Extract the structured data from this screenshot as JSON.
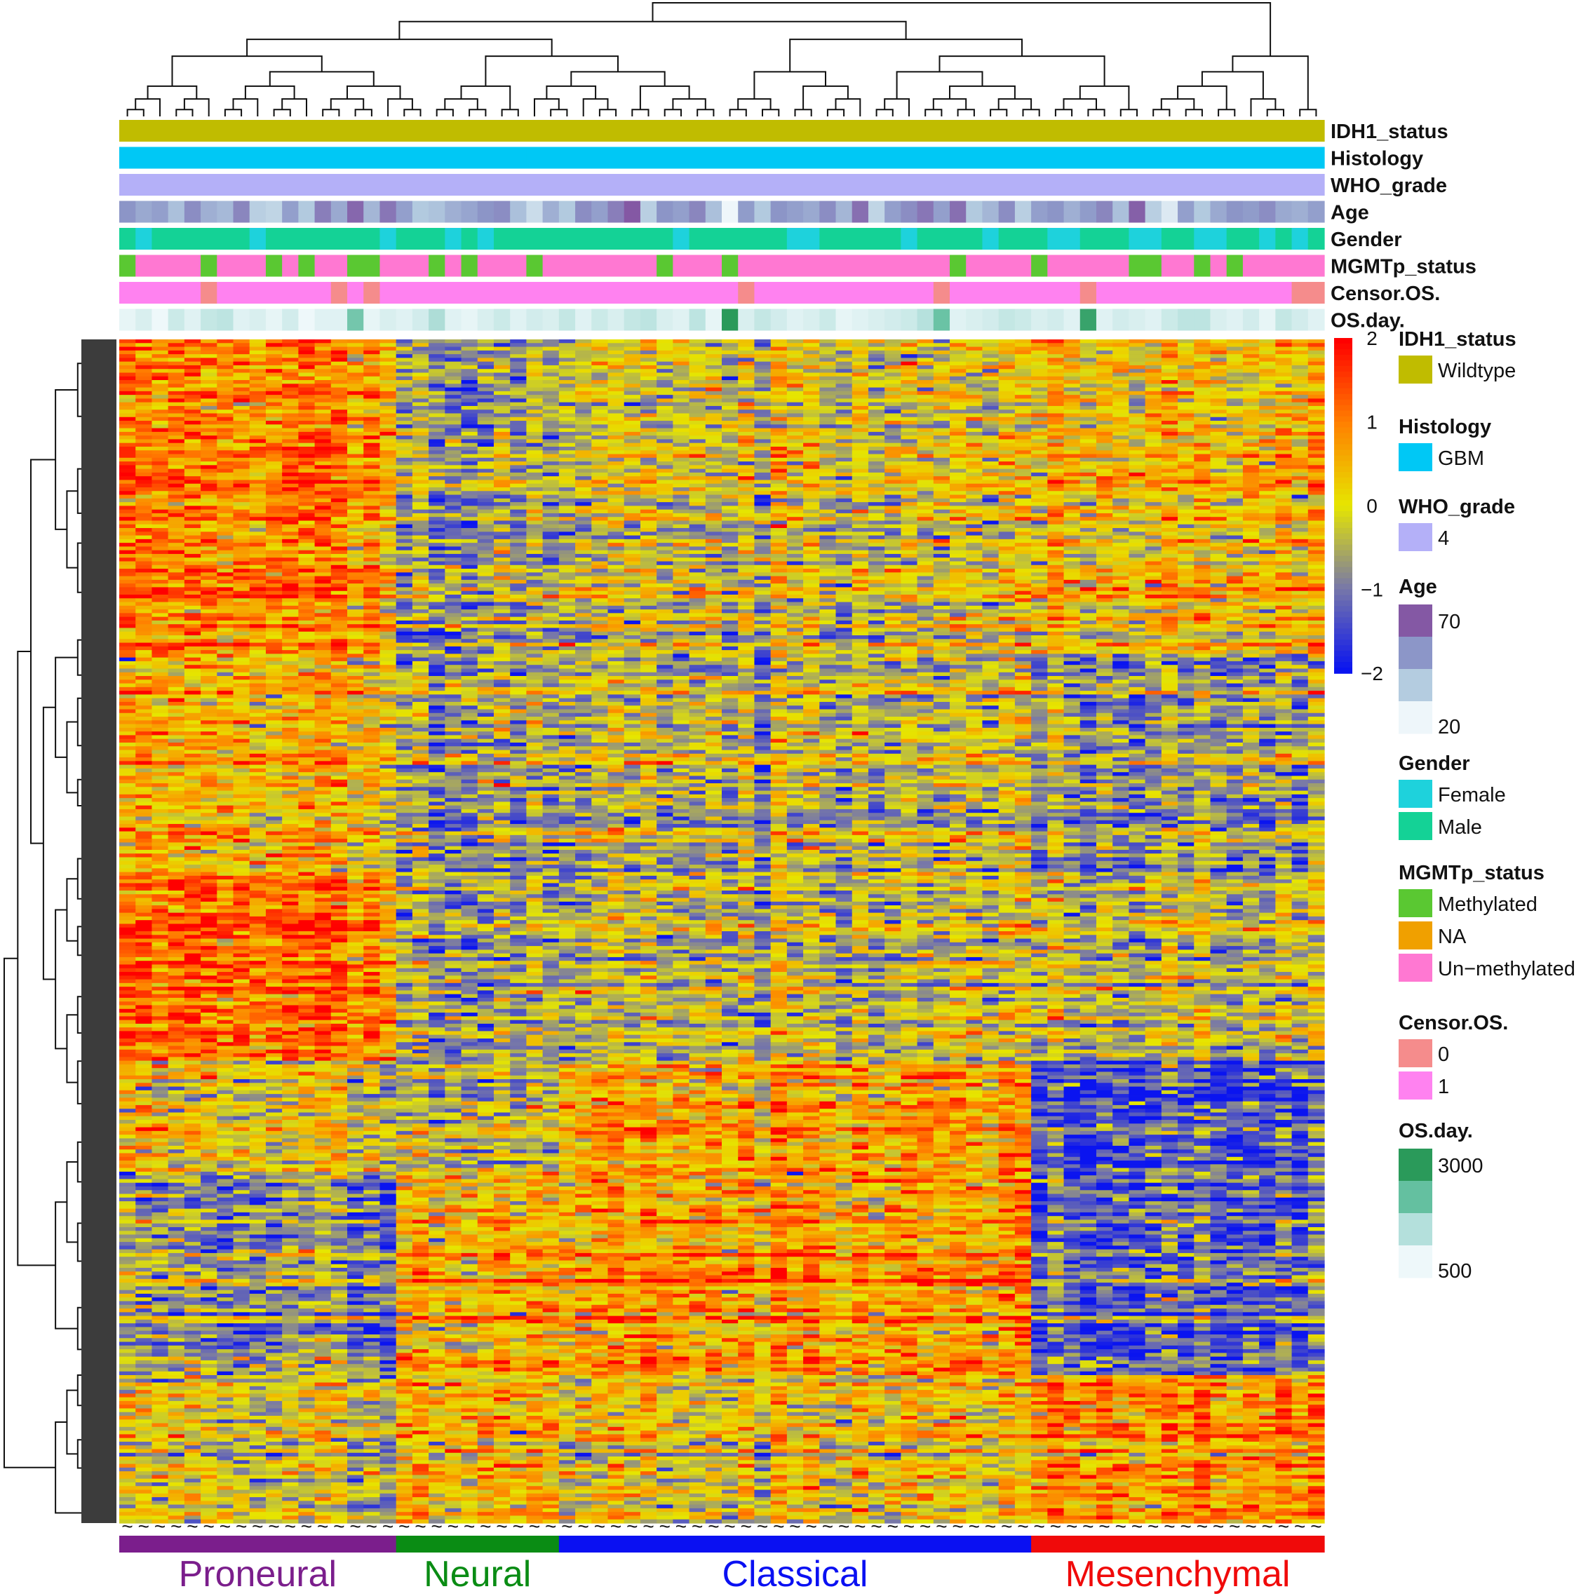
{
  "chart_data": {
    "type": "heatmap",
    "title": "",
    "n_samples": 74,
    "n_genes": 320,
    "color_scale": {
      "min": -2,
      "max": 2,
      "ticks": [
        2,
        1,
        0,
        -1,
        -2
      ],
      "tick_labels": [
        "2",
        "1",
        "0",
        "−1",
        "−2"
      ],
      "colors": [
        "#0a14f0",
        "#7878a8",
        "#e6e600",
        "#ff8000",
        "#ff0000"
      ]
    },
    "column_annotations": [
      {
        "name": "IDH1_status",
        "type": "categorical",
        "levels": [
          {
            "label": "Wildtype",
            "color": "#c0bc00"
          }
        ],
        "values": [
          0,
          0,
          0,
          0,
          0,
          0,
          0,
          0,
          0,
          0,
          0,
          0,
          0,
          0,
          0,
          0,
          0,
          0,
          0,
          0,
          0,
          0,
          0,
          0,
          0,
          0,
          0,
          0,
          0,
          0,
          0,
          0,
          0,
          0,
          0,
          0,
          0,
          0,
          0,
          0,
          0,
          0,
          0,
          0,
          0,
          0,
          0,
          0,
          0,
          0,
          0,
          0,
          0,
          0,
          0,
          0,
          0,
          0,
          0,
          0,
          0,
          0,
          0,
          0,
          0,
          0,
          0,
          0,
          0,
          0,
          0,
          0,
          0,
          0
        ]
      },
      {
        "name": "Histology",
        "type": "categorical",
        "levels": [
          {
            "label": "GBM",
            "color": "#00c8f5"
          }
        ],
        "values": [
          0,
          0,
          0,
          0,
          0,
          0,
          0,
          0,
          0,
          0,
          0,
          0,
          0,
          0,
          0,
          0,
          0,
          0,
          0,
          0,
          0,
          0,
          0,
          0,
          0,
          0,
          0,
          0,
          0,
          0,
          0,
          0,
          0,
          0,
          0,
          0,
          0,
          0,
          0,
          0,
          0,
          0,
          0,
          0,
          0,
          0,
          0,
          0,
          0,
          0,
          0,
          0,
          0,
          0,
          0,
          0,
          0,
          0,
          0,
          0,
          0,
          0,
          0,
          0,
          0,
          0,
          0,
          0,
          0,
          0,
          0,
          0,
          0,
          0
        ]
      },
      {
        "name": "WHO_grade",
        "type": "categorical",
        "levels": [
          {
            "label": "4",
            "color": "#b4b0f8"
          }
        ],
        "values": [
          0,
          0,
          0,
          0,
          0,
          0,
          0,
          0,
          0,
          0,
          0,
          0,
          0,
          0,
          0,
          0,
          0,
          0,
          0,
          0,
          0,
          0,
          0,
          0,
          0,
          0,
          0,
          0,
          0,
          0,
          0,
          0,
          0,
          0,
          0,
          0,
          0,
          0,
          0,
          0,
          0,
          0,
          0,
          0,
          0,
          0,
          0,
          0,
          0,
          0,
          0,
          0,
          0,
          0,
          0,
          0,
          0,
          0,
          0,
          0,
          0,
          0,
          0,
          0,
          0,
          0,
          0,
          0,
          0,
          0,
          0,
          0,
          0,
          0
        ]
      },
      {
        "name": "Age",
        "type": "continuous",
        "legend_labels": [
          "70",
          "20"
        ],
        "stops": [
          "#8458a4",
          "#8c96c8",
          "#b4cce0",
          "#eef6fa"
        ],
        "values": [
          58,
          52,
          55,
          45,
          60,
          50,
          47,
          62,
          40,
          38,
          55,
          42,
          64,
          52,
          70,
          48,
          66,
          55,
          42,
          44,
          50,
          53,
          58,
          60,
          45,
          35,
          50,
          42,
          60,
          55,
          64,
          74,
          40,
          58,
          55,
          62,
          45,
          25,
          56,
          42,
          58,
          55,
          52,
          60,
          48,
          68,
          38,
          55,
          60,
          66,
          55,
          68,
          42,
          48,
          60,
          40,
          55,
          58,
          50,
          56,
          62,
          45,
          72,
          40,
          30,
          55,
          42,
          52,
          58,
          56,
          60,
          52,
          50,
          55
        ]
      },
      {
        "name": "Gender",
        "type": "categorical",
        "levels": [
          {
            "label": "Female",
            "color": "#1ed2dc"
          },
          {
            "label": "Male",
            "color": "#14d296"
          }
        ],
        "values": [
          1,
          0,
          1,
          1,
          1,
          1,
          1,
          1,
          0,
          1,
          1,
          1,
          1,
          1,
          1,
          1,
          0,
          1,
          1,
          1,
          0,
          1,
          0,
          1,
          1,
          1,
          1,
          1,
          1,
          1,
          1,
          1,
          1,
          1,
          0,
          1,
          1,
          1,
          1,
          1,
          1,
          0,
          0,
          1,
          1,
          1,
          1,
          1,
          0,
          1,
          1,
          1,
          1,
          0,
          1,
          1,
          1,
          0,
          0,
          1,
          1,
          1,
          0,
          0,
          1,
          1,
          0,
          0,
          1,
          1,
          0,
          1,
          0,
          1
        ]
      },
      {
        "name": "MGMTp_status",
        "type": "categorical",
        "levels": [
          {
            "label": "Methylated",
            "color": "#5ac832"
          },
          {
            "label": "NA",
            "color": "#f0a000"
          },
          {
            "label": "Un−methylated",
            "color": "#ff78d2"
          }
        ],
        "values": [
          0,
          2,
          2,
          2,
          2,
          0,
          2,
          2,
          2,
          0,
          2,
          0,
          2,
          2,
          0,
          0,
          2,
          2,
          2,
          0,
          2,
          0,
          2,
          2,
          2,
          0,
          2,
          2,
          2,
          2,
          2,
          2,
          2,
          0,
          2,
          2,
          2,
          0,
          2,
          2,
          2,
          2,
          2,
          2,
          2,
          2,
          2,
          2,
          2,
          2,
          2,
          0,
          2,
          2,
          2,
          2,
          0,
          2,
          2,
          2,
          2,
          2,
          0,
          0,
          2,
          2,
          0,
          2,
          0,
          2,
          2,
          2,
          2,
          2
        ]
      },
      {
        "name": "Censor.OS.",
        "type": "categorical",
        "levels": [
          {
            "label": "0",
            "color": "#f58c8c"
          },
          {
            "label": "1",
            "color": "#ff82f0"
          }
        ],
        "values": [
          1,
          1,
          1,
          1,
          1,
          0,
          1,
          1,
          1,
          1,
          1,
          1,
          1,
          0,
          1,
          0,
          1,
          1,
          1,
          1,
          1,
          1,
          1,
          1,
          1,
          1,
          1,
          1,
          1,
          1,
          1,
          1,
          1,
          1,
          1,
          1,
          1,
          1,
          0,
          1,
          1,
          1,
          1,
          1,
          1,
          1,
          1,
          1,
          1,
          1,
          0,
          1,
          1,
          1,
          1,
          1,
          1,
          1,
          1,
          0,
          1,
          1,
          1,
          1,
          1,
          1,
          1,
          1,
          1,
          1,
          1,
          1,
          0,
          0
        ]
      },
      {
        "name": "OS.day.",
        "type": "continuous",
        "legend_labels": [
          "3000",
          "500"
        ],
        "stops": [
          "#2a9a5a",
          "#64c0a0",
          "#b4e0dc",
          "#eef8fa"
        ],
        "values": [
          400,
          600,
          300,
          800,
          500,
          900,
          1000,
          500,
          600,
          400,
          700,
          300,
          500,
          500,
          1800,
          400,
          600,
          500,
          700,
          1200,
          500,
          400,
          600,
          800,
          500,
          700,
          600,
          900,
          500,
          800,
          600,
          900,
          1000,
          600,
          500,
          1000,
          400,
          2800,
          600,
          900,
          700,
          500,
          600,
          800,
          400,
          500,
          600,
          700,
          800,
          1100,
          1900,
          500,
          600,
          700,
          900,
          800,
          600,
          700,
          500,
          2600,
          500,
          700,
          600,
          500,
          800,
          1000,
          1000,
          600,
          500,
          700,
          400,
          900,
          700,
          500
        ]
      }
    ],
    "subtype_bar": [
      {
        "label": "Proneural",
        "color": "#7b1e8c",
        "label_color": "#7b1e8c",
        "n": 17
      },
      {
        "label": "Neural",
        "color": "#0a8c14",
        "label_color": "#0a8c14",
        "n": 10
      },
      {
        "label": "Classical",
        "color": "#0a10f2",
        "label_color": "#0a10f2",
        "n": 29
      },
      {
        "label": "Mesenchymal",
        "color": "#f00a0a",
        "label_color": "#f00a0a",
        "n": 18
      }
    ],
    "gene_clusters": [
      {
        "rows": 85,
        "levels": {
          "Proneural": 1.0,
          "Neural": -0.6,
          "Classical": -0.2,
          "Mesenchymal": 0.3
        }
      },
      {
        "rows": 60,
        "levels": {
          "Proneural": 0.6,
          "Neural": -0.5,
          "Classical": -0.3,
          "Mesenchymal": -0.6
        }
      },
      {
        "rows": 50,
        "levels": {
          "Proneural": 1.2,
          "Neural": -0.6,
          "Classical": -0.4,
          "Mesenchymal": -0.3
        }
      },
      {
        "rows": 30,
        "levels": {
          "Proneural": 0.2,
          "Neural": -0.3,
          "Classical": 0.6,
          "Mesenchymal": -1.3
        }
      },
      {
        "rows": 55,
        "levels": {
          "Proneural": -0.6,
          "Neural": 0.5,
          "Classical": 0.7,
          "Mesenchymal": -1.1
        }
      },
      {
        "rows": 40,
        "levels": {
          "Proneural": 0.0,
          "Neural": 0.5,
          "Classical": 0.1,
          "Mesenchymal": 0.9
        }
      }
    ]
  }
}
